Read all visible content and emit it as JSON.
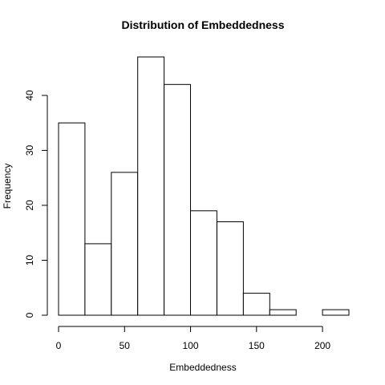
{
  "chart_data": {
    "type": "bar",
    "title": "Distribution of Embeddedness",
    "xlabel": "Embeddedness",
    "ylabel": "Frequency",
    "bins": [
      {
        "start": 0,
        "end": 20,
        "value": 35
      },
      {
        "start": 20,
        "end": 40,
        "value": 13
      },
      {
        "start": 40,
        "end": 60,
        "value": 26
      },
      {
        "start": 60,
        "end": 80,
        "value": 47
      },
      {
        "start": 80,
        "end": 100,
        "value": 42
      },
      {
        "start": 100,
        "end": 120,
        "value": 19
      },
      {
        "start": 120,
        "end": 140,
        "value": 17
      },
      {
        "start": 140,
        "end": 160,
        "value": 4
      },
      {
        "start": 160,
        "end": 180,
        "value": 1
      },
      {
        "start": 180,
        "end": 200,
        "value": 0
      },
      {
        "start": 200,
        "end": 220,
        "value": 1
      }
    ],
    "xlim": [
      0,
      220
    ],
    "ylim": [
      0,
      47
    ],
    "xticks": [
      0,
      50,
      100,
      150,
      200
    ],
    "yticks": [
      0,
      10,
      20,
      30,
      40
    ],
    "grid": false,
    "colors": {
      "bar_fill": "#ffffff",
      "bar_stroke": "#000000"
    }
  }
}
